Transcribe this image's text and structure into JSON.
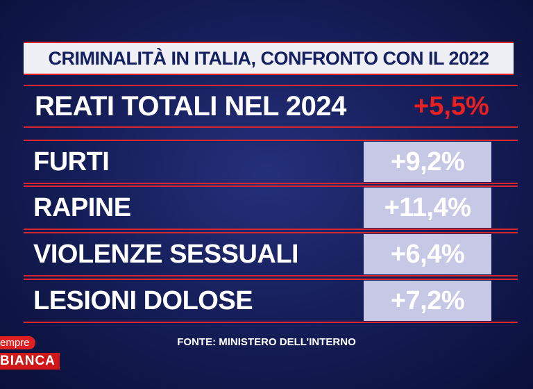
{
  "header": {
    "title": "CRIMINALITÀ IN ITALIA, CONFRONTO CON IL 2022"
  },
  "total": {
    "label": "REATI TOTALI NEL 2024",
    "value": "+5,5%"
  },
  "table": {
    "rows": [
      [
        "FURTI",
        "+9,2%"
      ],
      [
        "RAPINE",
        "+11,4%"
      ],
      [
        "VIOLENZE SESSUALI",
        "+6,4%"
      ],
      [
        "LESIONI DOLOSE",
        "+7,2%"
      ]
    ]
  },
  "footer": {
    "source": "FONTE: MINISTERO DELL’INTERNO"
  },
  "logo": {
    "line1": "empre",
    "line2": "BIANCA"
  }
}
